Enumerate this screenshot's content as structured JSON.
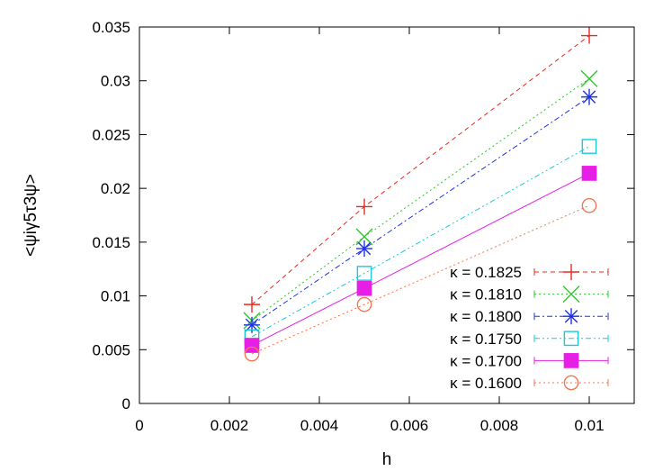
{
  "chart_data": {
    "type": "line",
    "xlabel": "h",
    "ylabel": "<ψiγ5τ3ψ>",
    "xlim": [
      0,
      0.011
    ],
    "ylim": [
      0,
      0.035
    ],
    "x_ticks": [
      "0",
      "0.002",
      "0.004",
      "0.006",
      "0.008",
      "0.01"
    ],
    "y_ticks": [
      "0",
      "0.005",
      "0.01",
      "0.015",
      "0.02",
      "0.025",
      "0.03",
      "0.035"
    ],
    "grid": false,
    "legend_position": "bottom-right",
    "series": [
      {
        "name": "κ = 0.1825",
        "color": "#e8281e",
        "marker": "plus",
        "dash": "5,4",
        "x": [
          0.0025,
          0.005,
          0.01
        ],
        "y": [
          0.0092,
          0.0183,
          0.0342
        ]
      },
      {
        "name": "κ = 0.1810",
        "color": "#2ec82e",
        "marker": "cross",
        "dash": "2,3",
        "x": [
          0.0025,
          0.005,
          0.01
        ],
        "y": [
          0.0077,
          0.0155,
          0.0302
        ]
      },
      {
        "name": "κ = 0.1800",
        "color": "#1e32e6",
        "marker": "star",
        "dash": "6,3,2,3",
        "x": [
          0.0025,
          0.005,
          0.01
        ],
        "y": [
          0.0073,
          0.0144,
          0.0285
        ]
      },
      {
        "name": "κ = 0.1750",
        "color": "#1ec8dc",
        "marker": "open-square",
        "dash": "6,3,2,3,2,3",
        "x": [
          0.0025,
          0.005,
          0.01
        ],
        "y": [
          0.0062,
          0.0121,
          0.0239
        ]
      },
      {
        "name": "κ = 0.1700",
        "color": "#e61ee6",
        "marker": "filled-square",
        "dash": "",
        "x": [
          0.0025,
          0.005,
          0.01
        ],
        "y": [
          0.0054,
          0.0107,
          0.0214
        ]
      },
      {
        "name": "κ = 0.1600",
        "color": "#f07850",
        "marker": "open-circle",
        "dash": "2,3",
        "x": [
          0.0025,
          0.005,
          0.01
        ],
        "y": [
          0.0046,
          0.0092,
          0.0184
        ]
      }
    ]
  }
}
